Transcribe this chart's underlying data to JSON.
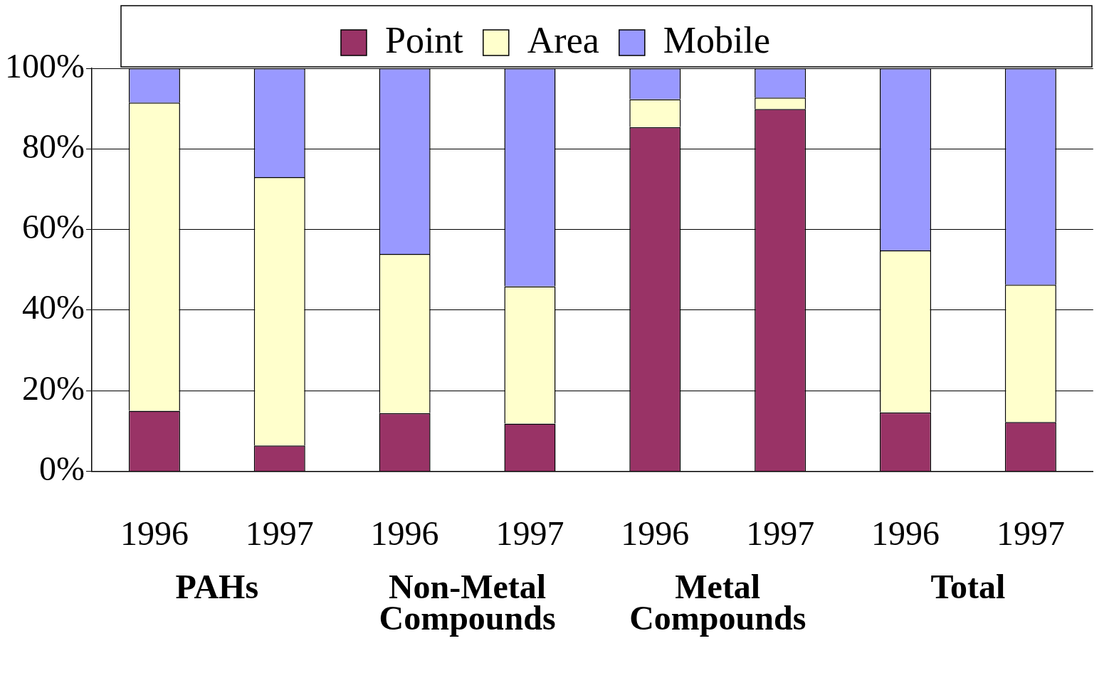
{
  "chart_data": {
    "type": "bar",
    "stacked": true,
    "categories": [
      "1996",
      "1997",
      "1996",
      "1997",
      "1996",
      "1997",
      "1996",
      "1997"
    ],
    "series": [
      {
        "name": "Point",
        "color": "#993366",
        "values": [
          15.0,
          6.4,
          14.4,
          11.8,
          85.4,
          89.9,
          14.6,
          12.2
        ]
      },
      {
        "name": "Area",
        "color": "#ffffcc",
        "values": [
          76.5,
          66.6,
          39.5,
          34.1,
          6.9,
          2.8,
          40.2,
          34.1
        ]
      },
      {
        "name": "Mobile",
        "color": "#9999ff",
        "values": [
          8.5,
          27.0,
          46.1,
          54.1,
          7.7,
          7.3,
          45.2,
          53.7
        ]
      }
    ],
    "ylim": [
      0,
      100
    ],
    "yticks": [
      {
        "value": 0,
        "label": "0%"
      },
      {
        "value": 20,
        "label": "20%"
      },
      {
        "value": 40,
        "label": "40%"
      },
      {
        "value": 60,
        "label": "60%"
      },
      {
        "value": 80,
        "label": "80%"
      },
      {
        "value": 100,
        "label": "100%"
      }
    ],
    "grid": "y",
    "legend": "top",
    "annotations": [
      "PAHs",
      "Non-Metal Compounds",
      "Metal Compounds",
      "Total"
    ]
  }
}
